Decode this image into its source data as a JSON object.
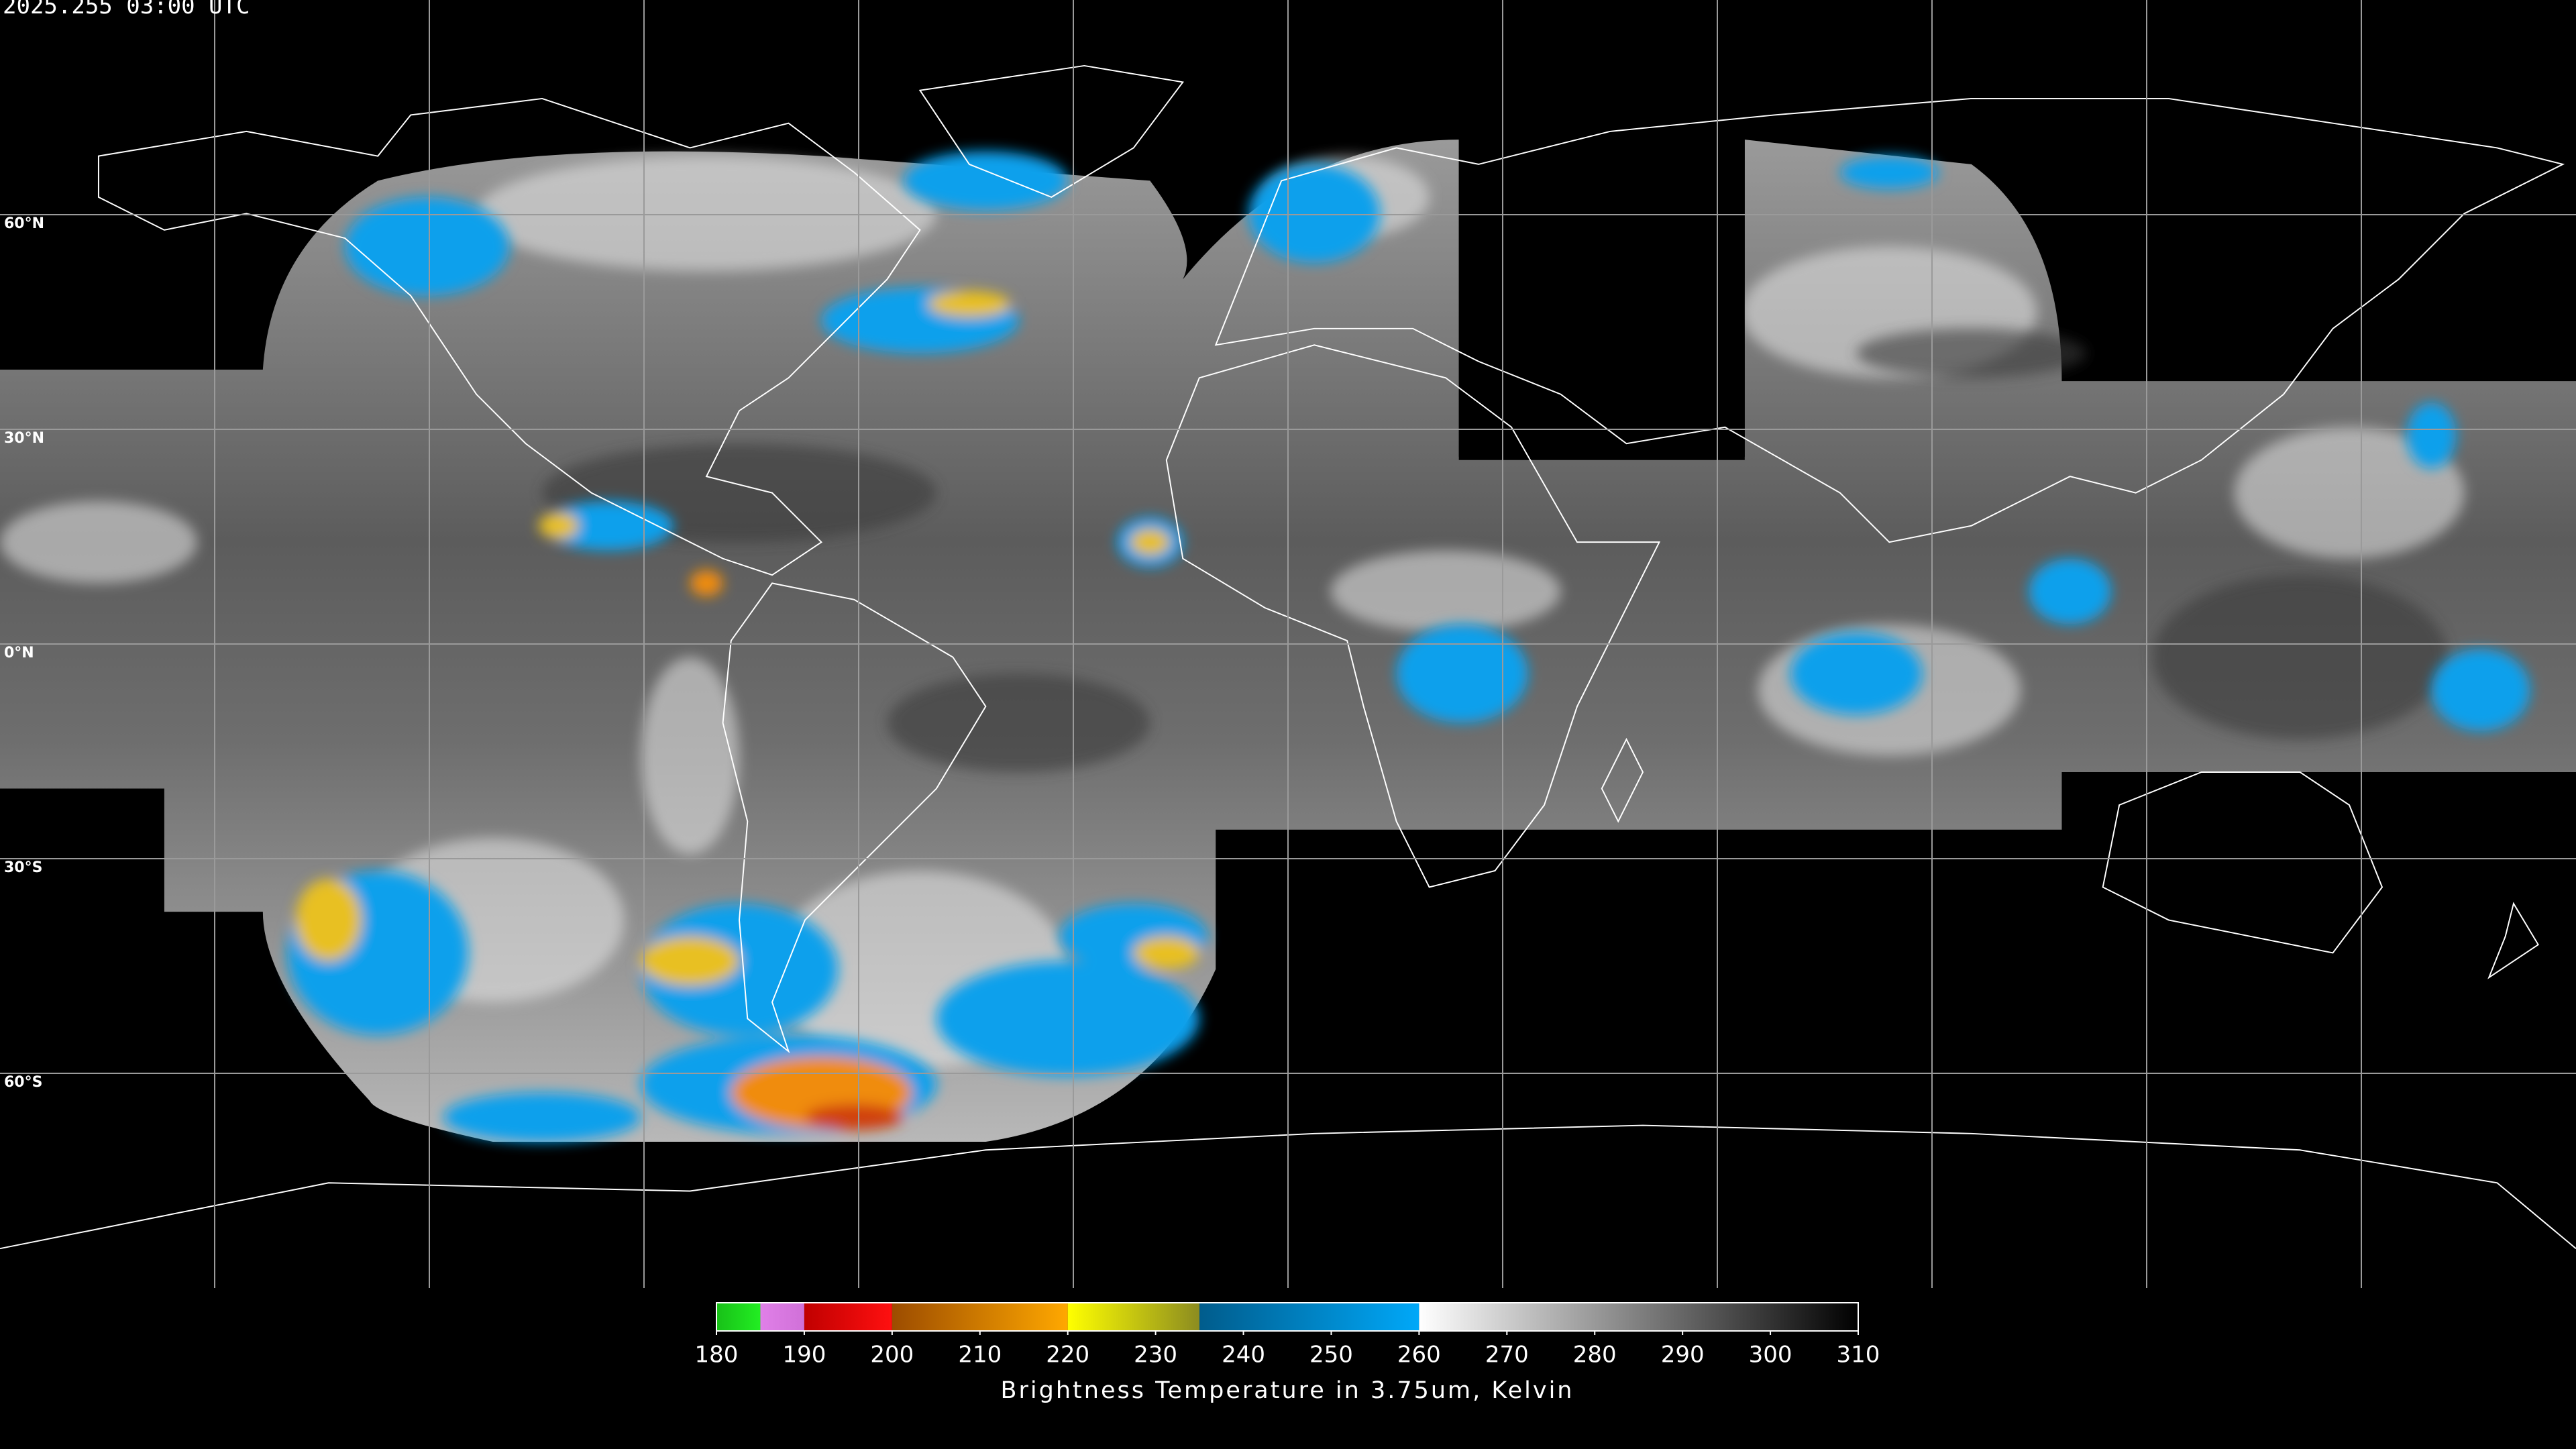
{
  "map": {
    "timestamp": "2025.255 03:00 UTC",
    "xlim": [
      -180,
      180
    ],
    "ylim": [
      -90,
      90
    ],
    "parallels": [
      {
        "value": 60,
        "label": "60°N"
      },
      {
        "value": 30,
        "label": "30°N"
      },
      {
        "value": 0,
        "label": "0°N"
      },
      {
        "value": -30,
        "label": "30°S"
      },
      {
        "value": -60,
        "label": "60°S"
      }
    ],
    "meridians": [
      -150,
      -120,
      -90,
      -60,
      -30,
      0,
      30,
      60,
      90,
      120,
      150
    ],
    "grid_color": "#9a9a9a",
    "coast_color": "#ffffff"
  },
  "colorbar": {
    "title": "Brightness Temperature in 3.75um, Kelvin",
    "clim": [
      180,
      310
    ],
    "ticks": [
      180,
      190,
      200,
      210,
      220,
      230,
      240,
      250,
      260,
      270,
      280,
      290,
      300,
      310
    ],
    "segments": [
      {
        "range": [
          180,
          185
        ],
        "colors": [
          "#18c018",
          "#22ee22"
        ]
      },
      {
        "range": [
          185,
          190
        ],
        "colors": [
          "#e080e8",
          "#d070d8"
        ]
      },
      {
        "range": [
          190,
          200
        ],
        "colors": [
          "#c00000",
          "#ff1010"
        ]
      },
      {
        "range": [
          200,
          220
        ],
        "colors": [
          "#9c4c00",
          "#ffa800"
        ]
      },
      {
        "range": [
          220,
          235
        ],
        "colors": [
          "#ffff00",
          "#8c8c20"
        ]
      },
      {
        "range": [
          235,
          260
        ],
        "colors": [
          "#005c8c",
          "#00a8f8"
        ]
      },
      {
        "range": [
          260,
          310
        ],
        "colors": [
          "#ffffff",
          "#000000"
        ]
      }
    ]
  }
}
